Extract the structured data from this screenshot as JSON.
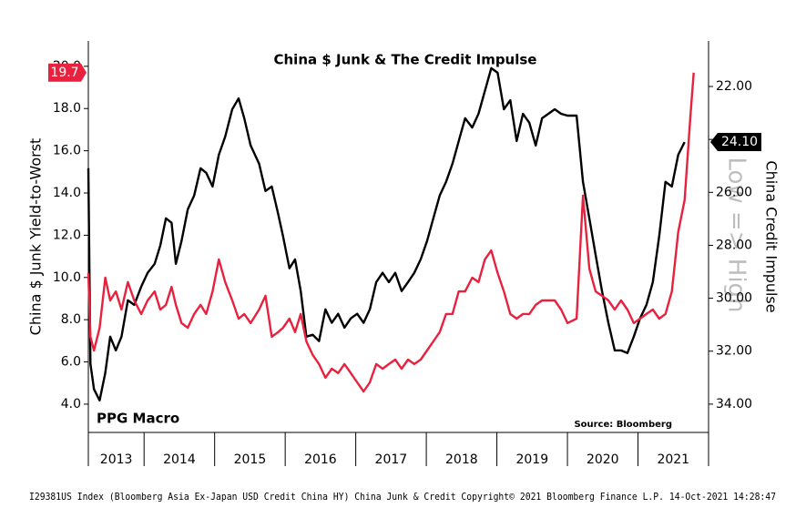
{
  "chart_data": {
    "type": "line",
    "title": "China $ Junk & The Credit Impulse",
    "ylabel": "China $ Junk Yield-to-Worst",
    "y2label": "China Credit Impulse",
    "watermark": "Low => High",
    "brand": "PPG Macro",
    "source": "Source: Bloomberg",
    "footer": "I29381US Index (Bloomberg Asia Ex-Japan USD Credit China HY) China Junk & Credit Copyright© 2021 Bloomberg Finance L.P. 14-Oct-2021 14:28:47",
    "xlim": [
      2013.21,
      2022.0
    ],
    "xticks": [
      {
        "value": 2013,
        "label": "2013"
      },
      {
        "value": 2014,
        "label": "2014"
      },
      {
        "value": 2015,
        "label": "2015"
      },
      {
        "value": 2016,
        "label": "2016"
      },
      {
        "value": 2017,
        "label": "2017"
      },
      {
        "value": 2018,
        "label": "2018"
      },
      {
        "value": 2019,
        "label": "2019"
      },
      {
        "value": 2020,
        "label": "2020"
      },
      {
        "value": 2021,
        "label": "2021"
      }
    ],
    "ylim": [
      2.66,
      21.2
    ],
    "yticks": [
      {
        "value": 4,
        "label": "4.0"
      },
      {
        "value": 6,
        "label": "6.0"
      },
      {
        "value": 8,
        "label": "8.0"
      },
      {
        "value": 10,
        "label": "10.0"
      },
      {
        "value": 12,
        "label": "12.0"
      },
      {
        "value": 14,
        "label": "14.0"
      },
      {
        "value": 16,
        "label": "16.0"
      },
      {
        "value": 18,
        "label": "18.0"
      },
      {
        "value": 20,
        "label": "20.0"
      }
    ],
    "y2lim": [
      20.28,
      35.07
    ],
    "y2_inverted": true,
    "y2ticks": [
      {
        "value": 22,
        "label": "22.00"
      },
      {
        "value": 24,
        "label": "24.00"
      },
      {
        "value": 26,
        "label": "26.00"
      },
      {
        "value": 28,
        "label": "28.00"
      },
      {
        "value": 30,
        "label": "30.00"
      },
      {
        "value": 32,
        "label": "32.00"
      },
      {
        "value": 34,
        "label": "34.00"
      }
    ],
    "grid": false,
    "series": [
      {
        "color": "#000000",
        "axis": "y2",
        "last_value_label": "24.10",
        "x": [
          2013.21,
          2013.24,
          2013.29,
          2013.37,
          2013.45,
          2013.52,
          2013.6,
          2013.68,
          2013.77,
          2013.86,
          2013.96,
          2014.05,
          2014.15,
          2014.23,
          2014.31,
          2014.39,
          2014.45,
          2014.53,
          2014.62,
          2014.71,
          2014.8,
          2014.88,
          2014.97,
          2015.06,
          2015.15,
          2015.25,
          2015.34,
          2015.42,
          2015.51,
          2015.63,
          2015.72,
          2015.81,
          2015.9,
          2015.97,
          2016.06,
          2016.14,
          2016.22,
          2016.3,
          2016.39,
          2016.48,
          2016.57,
          2016.66,
          2016.75,
          2016.84,
          2016.93,
          2017.02,
          2017.11,
          2017.2,
          2017.29,
          2017.38,
          2017.47,
          2017.56,
          2017.65,
          2017.74,
          2017.83,
          2017.92,
          2018.01,
          2018.1,
          2018.19,
          2018.28,
          2018.37,
          2018.46,
          2018.55,
          2018.65,
          2018.74,
          2018.83,
          2018.92,
          2019.01,
          2019.1,
          2019.19,
          2019.28,
          2019.37,
          2019.46,
          2019.55,
          2019.64,
          2019.73,
          2019.82,
          2019.91,
          2020.0,
          2020.13,
          2020.22,
          2020.31,
          2020.4,
          2020.49,
          2020.58,
          2020.67,
          2020.76,
          2020.85,
          2020.94,
          2021.03,
          2021.12,
          2021.21,
          2021.3,
          2021.39,
          2021.48,
          2021.57,
          2021.66
        ],
        "values": [
          25.09,
          32.48,
          33.44,
          33.86,
          32.82,
          31.45,
          31.97,
          31.45,
          30.08,
          30.25,
          29.56,
          29.04,
          28.7,
          28.01,
          26.98,
          27.15,
          28.7,
          27.84,
          26.64,
          26.12,
          25.09,
          25.26,
          25.78,
          24.58,
          23.89,
          22.86,
          22.45,
          23.2,
          24.23,
          24.92,
          25.95,
          25.78,
          26.81,
          27.66,
          28.87,
          28.53,
          29.73,
          31.45,
          31.38,
          31.62,
          30.42,
          30.93,
          30.59,
          31.11,
          30.76,
          30.59,
          30.93,
          30.42,
          29.39,
          29.04,
          29.39,
          29.04,
          29.73,
          29.39,
          29.04,
          28.53,
          27.84,
          26.98,
          26.12,
          25.6,
          24.92,
          24.06,
          23.2,
          23.55,
          23.03,
          22.17,
          21.31,
          21.48,
          22.86,
          22.52,
          24.06,
          23.03,
          23.37,
          24.23,
          23.2,
          23.03,
          22.86,
          23.03,
          23.1,
          23.1,
          25.6,
          26.98,
          28.36,
          29.73,
          30.93,
          31.97,
          31.97,
          32.07,
          31.45,
          30.76,
          30.25,
          29.39,
          27.66,
          25.6,
          25.78,
          24.58,
          24.1
        ]
      },
      {
        "color": "#e8213f",
        "axis": "y",
        "last_value_label": "19.7",
        "x": [
          2013.21,
          2013.24,
          2013.29,
          2013.37,
          2013.45,
          2013.52,
          2013.6,
          2013.68,
          2013.77,
          2013.86,
          2013.96,
          2014.05,
          2014.15,
          2014.23,
          2014.31,
          2014.39,
          2014.45,
          2014.53,
          2014.62,
          2014.71,
          2014.8,
          2014.88,
          2014.97,
          2015.06,
          2015.15,
          2015.25,
          2015.34,
          2015.42,
          2015.51,
          2015.63,
          2015.72,
          2015.81,
          2015.9,
          2015.97,
          2016.06,
          2016.14,
          2016.22,
          2016.3,
          2016.39,
          2016.48,
          2016.57,
          2016.66,
          2016.75,
          2016.84,
          2016.93,
          2017.02,
          2017.11,
          2017.2,
          2017.29,
          2017.38,
          2017.47,
          2017.56,
          2017.65,
          2017.74,
          2017.83,
          2017.92,
          2018.01,
          2018.1,
          2018.19,
          2018.28,
          2018.37,
          2018.46,
          2018.55,
          2018.65,
          2018.74,
          2018.83,
          2018.92,
          2019.01,
          2019.1,
          2019.19,
          2019.28,
          2019.37,
          2019.46,
          2019.55,
          2019.64,
          2019.73,
          2019.82,
          2019.91,
          2020.0,
          2020.13,
          2020.22,
          2020.31,
          2020.4,
          2020.49,
          2020.58,
          2020.67,
          2020.76,
          2020.85,
          2020.94,
          2021.03,
          2021.12,
          2021.21,
          2021.3,
          2021.39,
          2021.48,
          2021.57,
          2021.66,
          2021.74,
          2021.79
        ],
        "values": [
          10.21,
          7.19,
          6.54,
          7.62,
          9.99,
          8.91,
          9.34,
          8.48,
          9.78,
          8.91,
          8.27,
          8.91,
          9.34,
          8.48,
          8.7,
          9.56,
          8.7,
          7.84,
          7.62,
          8.27,
          8.7,
          8.27,
          9.34,
          10.85,
          9.78,
          8.91,
          8.05,
          8.27,
          7.84,
          8.48,
          9.13,
          7.19,
          7.41,
          7.62,
          8.05,
          7.41,
          8.27,
          6.97,
          6.33,
          5.9,
          5.25,
          5.68,
          5.47,
          5.9,
          5.47,
          5.03,
          4.6,
          5.03,
          5.9,
          5.68,
          5.9,
          6.11,
          5.68,
          6.11,
          5.9,
          6.11,
          6.54,
          6.97,
          7.41,
          8.27,
          8.27,
          9.34,
          9.34,
          9.99,
          9.78,
          10.85,
          11.28,
          10.21,
          9.34,
          8.27,
          8.05,
          8.27,
          8.27,
          8.7,
          8.91,
          8.91,
          8.91,
          8.48,
          7.84,
          8.05,
          13.87,
          10.42,
          9.34,
          9.13,
          8.91,
          8.48,
          8.91,
          8.48,
          7.84,
          8.05,
          8.27,
          8.48,
          8.05,
          8.27,
          9.34,
          12.15,
          13.66,
          17.53,
          19.7
        ]
      }
    ]
  }
}
